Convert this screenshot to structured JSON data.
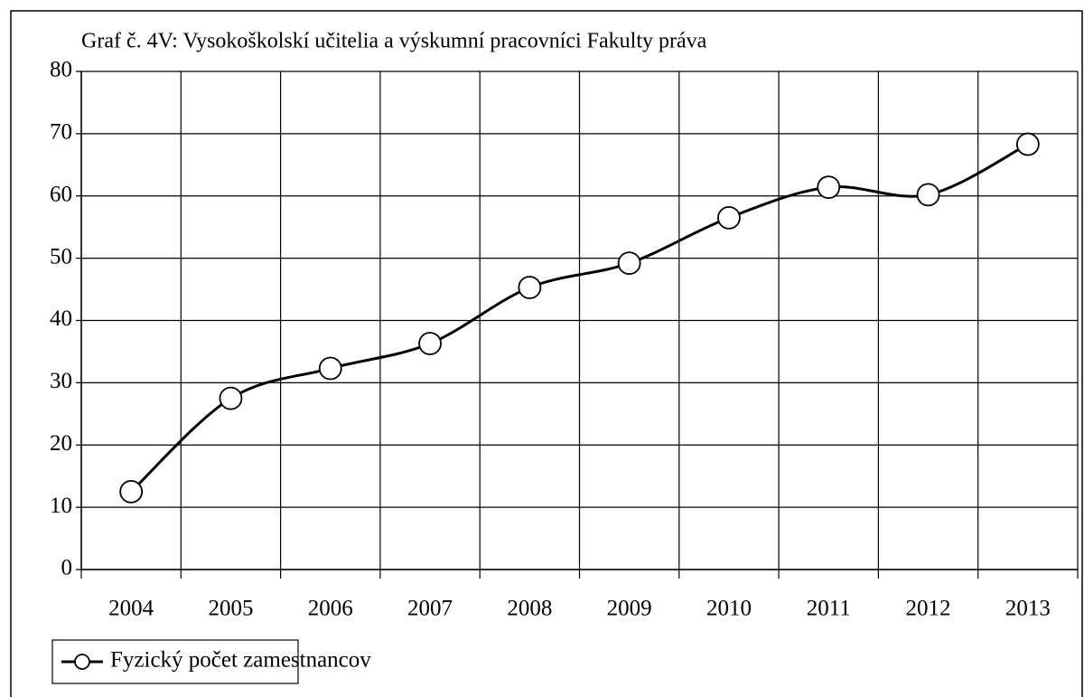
{
  "chart_data": {
    "type": "line",
    "title": "Graf č. 4V: Vysokoškolskí učitelia a výskumní pracovníci Fakulty práva",
    "categories": [
      "2004",
      "2005",
      "2006",
      "2007",
      "2008",
      "2009",
      "2010",
      "2011",
      "2012",
      "2013"
    ],
    "series": [
      {
        "name": "Fyzický počet zamestnancov",
        "color": "#000000",
        "values": [
          12.5,
          27.5,
          32.3,
          36.3,
          45.3,
          49.2,
          56.5,
          61.4,
          60.2,
          68.3
        ]
      }
    ],
    "ylim": [
      0,
      80
    ],
    "yticks": [
      0,
      10,
      20,
      30,
      40,
      50,
      60,
      70,
      80
    ],
    "grid": true,
    "smooth": true,
    "legend": "bottom-left"
  }
}
